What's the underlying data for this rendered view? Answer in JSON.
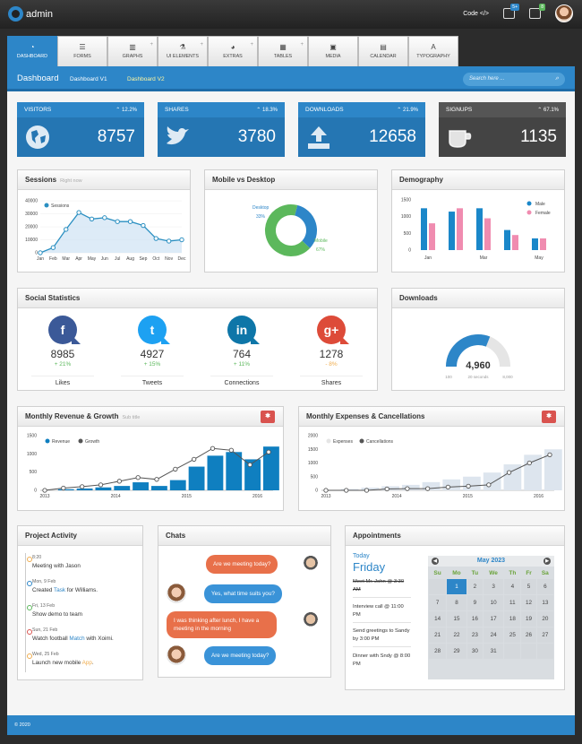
{
  "app": {
    "name": "admin",
    "code_label": "Code",
    "badge1": "5+",
    "badge2": "8"
  },
  "tabs": [
    {
      "label": "DASHBOARD",
      "icon": "dashboard-icon",
      "glyph": "◔",
      "plus": false,
      "active": true
    },
    {
      "label": "FORMS",
      "icon": "list-icon",
      "glyph": "☰",
      "plus": false
    },
    {
      "label": "GRAPHS",
      "icon": "chart-icon",
      "glyph": "▥",
      "plus": true
    },
    {
      "label": "UI ELEMENTS",
      "icon": "flask-icon",
      "glyph": "⚗",
      "plus": true
    },
    {
      "label": "EXTRAS",
      "icon": "extras-icon",
      "glyph": "◕",
      "plus": true
    },
    {
      "label": "TABLES",
      "icon": "table-icon",
      "glyph": "▦",
      "plus": true
    },
    {
      "label": "MEDIA",
      "icon": "image-icon",
      "glyph": "▣",
      "plus": false
    },
    {
      "label": "CALENDAR",
      "icon": "calendar-icon",
      "glyph": "▤",
      "plus": false
    },
    {
      "label": "TYPOGRAPHY",
      "icon": "typography-icon",
      "glyph": "A",
      "plus": false
    }
  ],
  "header": {
    "title": "Dashboard",
    "crumb1": "Dashboard V1",
    "crumb2": "Dashboard V2",
    "search_placeholder": "Search here ..."
  },
  "stats": [
    {
      "label": "VISITORS",
      "change": "⌃ 12.2%",
      "value": "8757",
      "color": "#2d86c8",
      "dark": "#2576b3",
      "icon": "globe-icon"
    },
    {
      "label": "SHARES",
      "change": "⌃ 18.3%",
      "value": "3780",
      "color": "#2d86c8",
      "dark": "#2576b3",
      "icon": "twitter-icon"
    },
    {
      "label": "DOWNLOADS",
      "change": "⌃ 21.9%",
      "value": "12658",
      "color": "#2d86c8",
      "dark": "#2576b3",
      "icon": "upload-icon"
    },
    {
      "label": "SIGNUPS",
      "change": "⌃ 67.1%",
      "value": "1135",
      "color": "#555555",
      "dark": "#444444",
      "icon": "cup-icon"
    }
  ],
  "sessions": {
    "title": "Sessions",
    "subtitle": "Right now",
    "legend": "Sessions"
  },
  "mobile": {
    "title": "Mobile vs Desktop",
    "desktop_label": "Desktop",
    "desktop_pct": "33%",
    "mobile_label": "Mobile",
    "mobile_pct": "67%"
  },
  "demography": {
    "title": "Demography",
    "male": "Male",
    "female": "Female"
  },
  "social": {
    "title": "Social Statistics",
    "items": [
      {
        "name": "Likes",
        "count": "8985",
        "change": "+ 21%",
        "glyph": "f",
        "color": "#3b5998",
        "chg_color": "#5cb85c",
        "icon": "facebook-icon"
      },
      {
        "name": "Tweets",
        "count": "4927",
        "change": "+ 15%",
        "glyph": "t",
        "color": "#1da1f2",
        "chg_color": "#5cb85c",
        "icon": "twitter-icon"
      },
      {
        "name": "Connections",
        "count": "764",
        "change": "+ 11%",
        "glyph": "in",
        "color": "#0e76a8",
        "chg_color": "#5cb85c",
        "icon": "linkedin-icon"
      },
      {
        "name": "Shares",
        "count": "1278",
        "change": "- 8%",
        "glyph": "g+",
        "color": "#dd4b39",
        "chg_color": "#f0ad4e",
        "icon": "googleplus-icon"
      }
    ]
  },
  "downloads": {
    "title": "Downloads",
    "value": "4,960",
    "min": "100",
    "mid": "20 seconds",
    "max": "8,000",
    "fraction": 0.62
  },
  "revenue": {
    "title": "Monthly Revenue & Growth",
    "subtitle": "Sub title",
    "legend1": "Revenue",
    "legend2": "Growth"
  },
  "expenses": {
    "title": "Monthly Expenses & Cancellations",
    "legend1": "Expenses",
    "legend2": "Cancellations"
  },
  "activity": {
    "title": "Project Activity",
    "items": [
      {
        "date": "8:20",
        "pre": "Meeting with Jason",
        "link": "",
        "post": "",
        "color": "#f0ad4e"
      },
      {
        "date": "Mon, 9 Feb",
        "pre": "Created ",
        "link": "Task",
        "post": " for Williams.",
        "color": "#2d86c8"
      },
      {
        "date": "Fri, 13 Feb",
        "pre": "Show demo to team",
        "link": "",
        "post": "",
        "color": "#5cb85c"
      },
      {
        "date": "Sun, 21 Feb",
        "pre": "Watch football ",
        "link": "Match",
        "post": " with Xoimi.",
        "color": "#d9534f"
      },
      {
        "date": "Wed, 25 Feb",
        "pre": "Launch new mobile ",
        "link": "App",
        "post": ".",
        "color": "#f0ad4e"
      }
    ]
  },
  "chats": {
    "title": "Chats",
    "messages": [
      "Are we meeting today?",
      "Yes, what time suits you?",
      "I was thinking after lunch, I have a meeting in the morning",
      "Are we meeting today?"
    ]
  },
  "appointments": {
    "title": "Appointments",
    "today": "Today",
    "day": "Friday",
    "items": [
      "Meet Mr. John @ 3:30 AM",
      "Interview call @ 11:00 PM",
      "Send greetings to Sandy by 3:00 PM",
      "Dinner with Sndy @ 8:00 PM"
    ]
  },
  "calendar": {
    "month": "May 2023",
    "weekdays": [
      "Su",
      "Mo",
      "Tu",
      "We",
      "Th",
      "Fr",
      "Sa"
    ],
    "weeks": [
      [
        "",
        "1",
        "2",
        "3",
        "4",
        "5",
        "6"
      ],
      [
        "7",
        "8",
        "9",
        "10",
        "11",
        "12",
        "13"
      ],
      [
        "14",
        "15",
        "16",
        "17",
        "18",
        "19",
        "20"
      ],
      [
        "21",
        "22",
        "23",
        "24",
        "25",
        "26",
        "27"
      ],
      [
        "28",
        "29",
        "30",
        "31",
        "",
        "",
        ""
      ]
    ],
    "today": "1"
  },
  "footer": {
    "text": "© 2020"
  },
  "chart_data": [
    {
      "type": "line",
      "title": "Sessions",
      "series": [
        {
          "name": "Sessions",
          "values": [
            0,
            4000,
            18000,
            31000,
            26000,
            27000,
            24000,
            24000,
            21000,
            11000,
            9000,
            10000
          ]
        }
      ],
      "categories": [
        "Jan",
        "Feb",
        "Mar",
        "Apr",
        "May",
        "Jun",
        "Jul",
        "Aug",
        "Sep",
        "Oct",
        "Nov",
        "Dec"
      ],
      "yticks": [
        0,
        10000,
        20000,
        30000,
        40000
      ],
      "ylim": [
        0,
        40000
      ]
    },
    {
      "type": "pie",
      "title": "Mobile vs Desktop",
      "categories": [
        "Desktop",
        "Mobile"
      ],
      "values": [
        33,
        67
      ]
    },
    {
      "type": "bar",
      "title": "Demography",
      "categories": [
        "Jan",
        "",
        "Mar",
        "",
        "May"
      ],
      "xticks": [
        "Jan",
        "Mar",
        "May"
      ],
      "series": [
        {
          "name": "Male",
          "values": [
            1250,
            1150,
            1250,
            600,
            350
          ]
        },
        {
          "name": "Female",
          "values": [
            800,
            1250,
            950,
            450,
            350
          ]
        }
      ],
      "yticks": [
        0,
        500,
        1000,
        1500
      ],
      "ylim": [
        0,
        1500
      ]
    },
    {
      "type": "bar",
      "title": "Monthly Revenue & Growth",
      "xticks": [
        "2013",
        "2014",
        "2015",
        "2016"
      ],
      "series": [
        {
          "name": "Revenue",
          "values": [
            0,
            30,
            50,
            80,
            120,
            220,
            120,
            280,
            650,
            950,
            1050,
            850,
            1200
          ]
        },
        {
          "name": "Growth",
          "values": [
            0,
            60,
            100,
            150,
            250,
            350,
            300,
            580,
            850,
            1150,
            1100,
            700,
            1050
          ]
        }
      ],
      "yticks": [
        0,
        500,
        1000,
        1500
      ],
      "ylim": [
        0,
        1500
      ]
    },
    {
      "type": "bar",
      "title": "Monthly Expenses & Cancellations",
      "xticks": [
        "2013",
        "2014",
        "2015",
        "2016"
      ],
      "series": [
        {
          "name": "Expenses",
          "values": [
            0,
            50,
            100,
            150,
            200,
            300,
            400,
            500,
            650,
            950,
            1300,
            1500
          ]
        },
        {
          "name": "Cancellations",
          "values": [
            0,
            0,
            0,
            50,
            60,
            60,
            120,
            150,
            200,
            650,
            1000,
            1300
          ]
        }
      ],
      "yticks": [
        0,
        500,
        1000,
        1500,
        2000
      ],
      "ylim": [
        0,
        2000
      ]
    }
  ]
}
